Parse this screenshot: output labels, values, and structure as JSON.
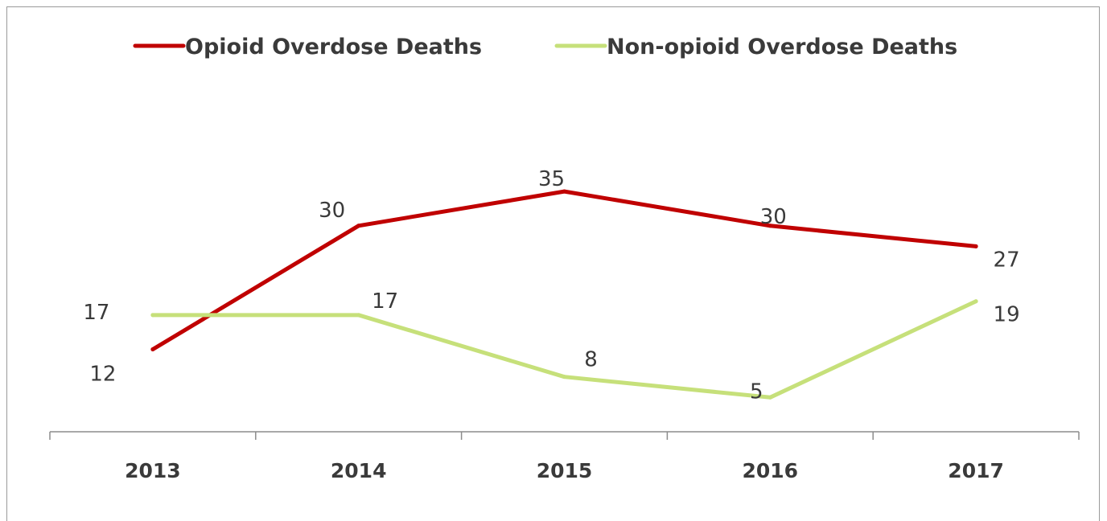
{
  "chart_data": {
    "type": "line",
    "title": "",
    "xlabel": "",
    "ylabel": "",
    "categories": [
      "2013",
      "2014",
      "2015",
      "2016",
      "2017"
    ],
    "ylim": [
      0,
      50
    ],
    "grid": false,
    "legend_position": "top",
    "series": [
      {
        "name": "Opioid Overdose Deaths",
        "color": "#c00000",
        "values": [
          12,
          30,
          35,
          30,
          27
        ],
        "labels": [
          "12",
          "30",
          "35",
          "30",
          "27"
        ]
      },
      {
        "name": "Non-opioid Overdose Deaths",
        "color": "#c6e07a",
        "values": [
          17,
          17,
          8,
          5,
          19
        ],
        "labels": [
          "17",
          "17",
          "8",
          "5",
          "19"
        ]
      }
    ]
  }
}
